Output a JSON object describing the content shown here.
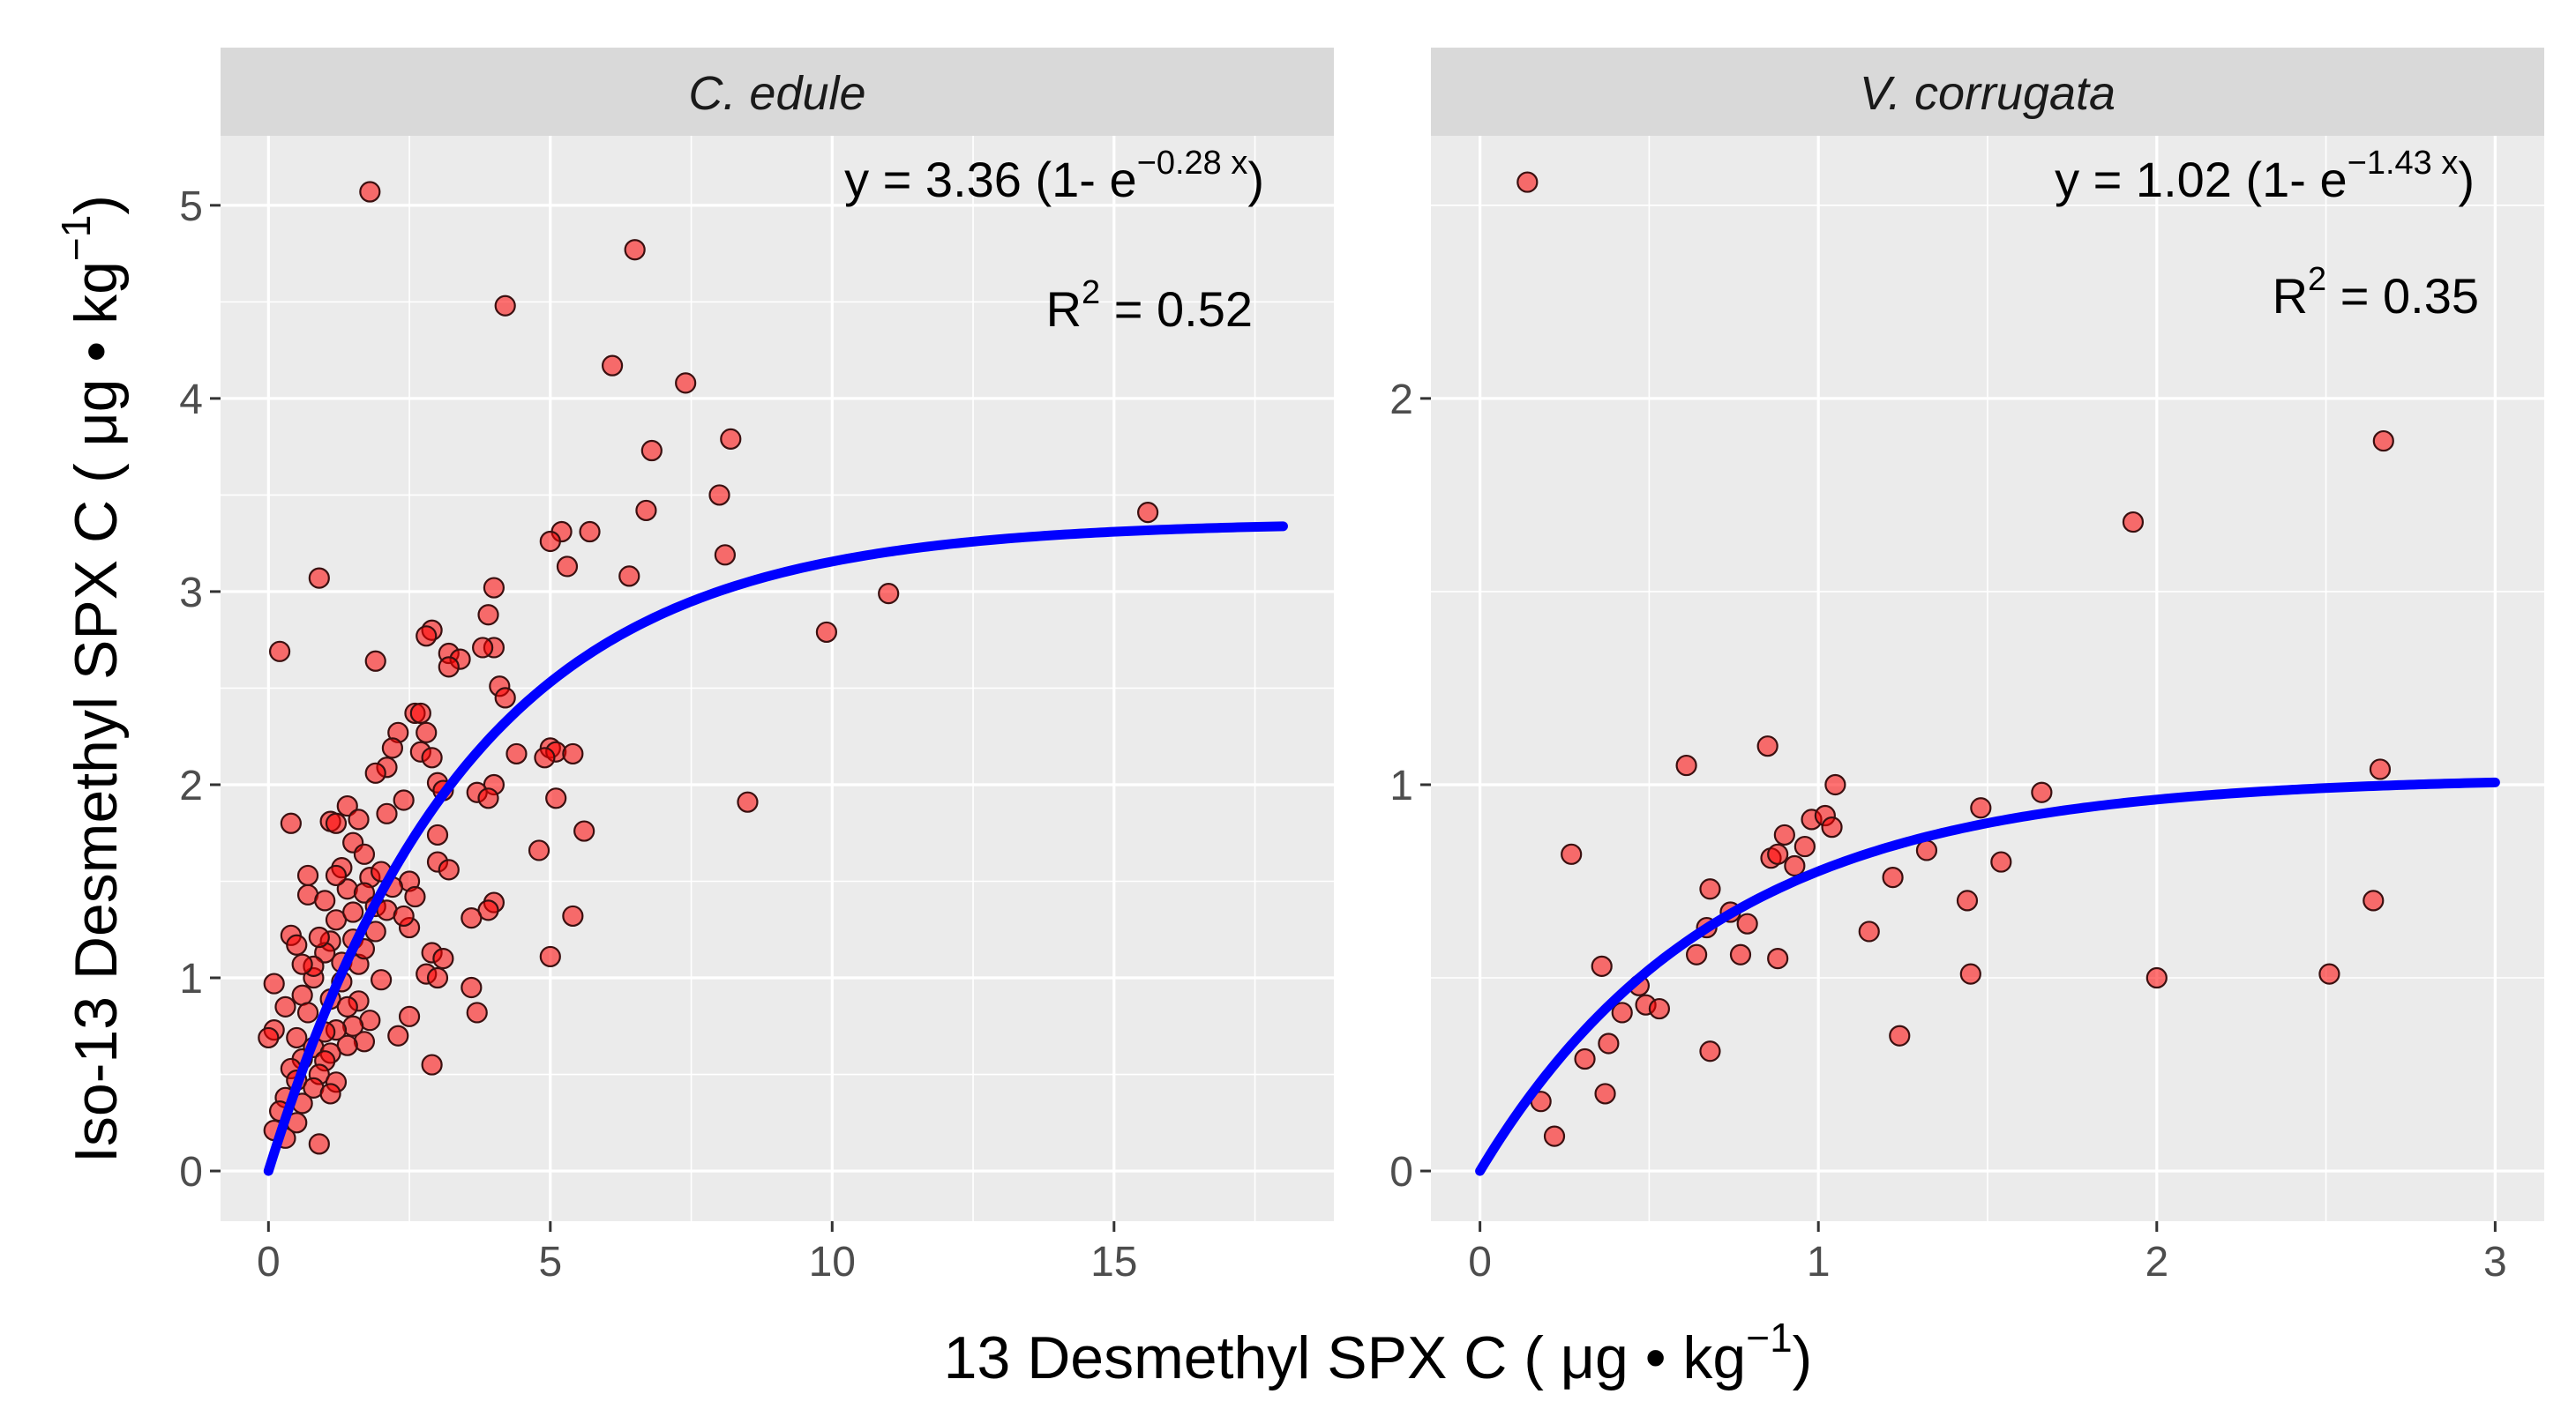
{
  "chart_data": {
    "type": "scatter",
    "y_axis_title": {
      "main": "Iso-13 Desmethyl SPX C ( μg • kg",
      "sup": "−1",
      "end": ")"
    },
    "x_axis_title": {
      "main": "13 Desmethyl SPX C ( μg • kg",
      "sup": "−1",
      "end": ")"
    },
    "colors": {
      "points": "#ff0000",
      "fit_line": "#0000ff",
      "panel": "#ebebeb",
      "strip": "#d9d9d9"
    },
    "panels": [
      {
        "strip_label": "C. edule",
        "equation": {
          "left": "y = 3.36 (1- e",
          "exponent": "−0.28 x",
          "right": ")"
        },
        "r_squared": {
          "label": "R",
          "sup": "2",
          "value_text": " = 0.52"
        },
        "fit": {
          "a": 3.36,
          "b": 0.28,
          "x_min": 0,
          "x_max": 18
        },
        "xlim": [
          -0.85,
          18.9
        ],
        "ylim": [
          -0.26,
          5.36
        ],
        "x_ticks": [
          0,
          5,
          10,
          15
        ],
        "x_tick_labels": [
          "0",
          "5",
          "10",
          "15"
        ],
        "y_ticks": [
          0,
          1,
          2,
          3,
          4,
          5
        ],
        "y_tick_labels": [
          "0",
          "1",
          "2",
          "3",
          "4",
          "5"
        ],
        "points": [
          [
            1.8,
            5.07
          ],
          [
            6.5,
            4.77
          ],
          [
            4.2,
            4.48
          ],
          [
            6.1,
            4.17
          ],
          [
            7.4,
            4.08
          ],
          [
            8.2,
            3.79
          ],
          [
            6.8,
            3.73
          ],
          [
            8.0,
            3.5
          ],
          [
            6.7,
            3.42
          ],
          [
            15.6,
            3.41
          ],
          [
            5.2,
            3.31
          ],
          [
            5.7,
            3.31
          ],
          [
            5.0,
            3.26
          ],
          [
            8.1,
            3.19
          ],
          [
            5.3,
            3.13
          ],
          [
            6.4,
            3.08
          ],
          [
            0.9,
            3.07
          ],
          [
            4.0,
            3.02
          ],
          [
            11.0,
            2.99
          ],
          [
            3.9,
            2.88
          ],
          [
            2.9,
            2.8
          ],
          [
            2.8,
            2.77
          ],
          [
            9.9,
            2.79
          ],
          [
            4.0,
            2.71
          ],
          [
            3.8,
            2.71
          ],
          [
            3.2,
            2.68
          ],
          [
            3.4,
            2.65
          ],
          [
            0.2,
            2.69
          ],
          [
            1.9,
            2.64
          ],
          [
            3.2,
            2.61
          ],
          [
            4.1,
            2.51
          ],
          [
            4.2,
            2.45
          ],
          [
            2.6,
            2.37
          ],
          [
            2.7,
            2.37
          ],
          [
            2.3,
            2.27
          ],
          [
            2.8,
            2.27
          ],
          [
            2.2,
            2.19
          ],
          [
            2.7,
            2.17
          ],
          [
            4.4,
            2.16
          ],
          [
            5.0,
            2.19
          ],
          [
            5.1,
            2.17
          ],
          [
            5.4,
            2.16
          ],
          [
            2.9,
            2.14
          ],
          [
            2.1,
            2.09
          ],
          [
            4.9,
            2.14
          ],
          [
            4.0,
            2.0
          ],
          [
            3.0,
            2.01
          ],
          [
            1.9,
            2.06
          ],
          [
            3.1,
            1.97
          ],
          [
            3.7,
            1.96
          ],
          [
            3.9,
            1.93
          ],
          [
            5.1,
            1.93
          ],
          [
            8.5,
            1.91
          ],
          [
            2.4,
            1.92
          ],
          [
            1.4,
            1.89
          ],
          [
            2.1,
            1.85
          ],
          [
            1.6,
            1.82
          ],
          [
            1.1,
            1.81
          ],
          [
            1.2,
            1.8
          ],
          [
            0.4,
            1.8
          ],
          [
            5.6,
            1.76
          ],
          [
            3.0,
            1.74
          ],
          [
            1.5,
            1.7
          ],
          [
            4.8,
            1.66
          ],
          [
            1.7,
            1.64
          ],
          [
            3.0,
            1.6
          ],
          [
            1.3,
            1.57
          ],
          [
            3.2,
            1.56
          ],
          [
            0.7,
            1.53
          ],
          [
            1.8,
            1.52
          ],
          [
            2.5,
            1.5
          ],
          [
            2.2,
            1.47
          ],
          [
            1.4,
            1.46
          ],
          [
            1.7,
            1.44
          ],
          [
            0.7,
            1.43
          ],
          [
            2.6,
            1.42
          ],
          [
            4.0,
            1.39
          ],
          [
            1.9,
            1.37
          ],
          [
            2.1,
            1.35
          ],
          [
            3.9,
            1.35
          ],
          [
            3.6,
            1.31
          ],
          [
            5.4,
            1.32
          ],
          [
            1.2,
            1.3
          ],
          [
            2.5,
            1.26
          ],
          [
            0.4,
            1.22
          ],
          [
            1.1,
            1.19
          ],
          [
            0.5,
            1.17
          ],
          [
            2.9,
            1.13
          ],
          [
            3.1,
            1.1
          ],
          [
            5.0,
            1.11
          ],
          [
            1.3,
            1.08
          ],
          [
            2.8,
            1.02
          ],
          [
            3.0,
            1.0
          ],
          [
            0.8,
            1.0
          ],
          [
            2.0,
            0.99
          ],
          [
            0.1,
            0.97
          ],
          [
            3.6,
            0.95
          ],
          [
            0.6,
            0.91
          ],
          [
            1.6,
            0.88
          ],
          [
            3.7,
            0.82
          ],
          [
            2.5,
            0.8
          ],
          [
            0.3,
            0.85
          ],
          [
            1.8,
            0.78
          ],
          [
            1.5,
            0.75
          ],
          [
            0.1,
            0.73
          ],
          [
            1.2,
            0.73
          ],
          [
            2.3,
            0.7
          ],
          [
            0.5,
            0.69
          ],
          [
            0.0,
            0.69
          ],
          [
            1.7,
            0.67
          ],
          [
            1.4,
            0.65
          ],
          [
            0.8,
            0.64
          ],
          [
            1.1,
            0.61
          ],
          [
            0.6,
            0.58
          ],
          [
            1.0,
            0.57
          ],
          [
            2.9,
            0.55
          ],
          [
            0.4,
            0.53
          ],
          [
            0.9,
            0.5
          ],
          [
            0.5,
            0.47
          ],
          [
            1.2,
            0.46
          ],
          [
            0.8,
            0.43
          ],
          [
            1.1,
            0.4
          ],
          [
            0.3,
            0.38
          ],
          [
            0.6,
            0.35
          ],
          [
            0.2,
            0.31
          ],
          [
            0.5,
            0.25
          ],
          [
            0.1,
            0.21
          ],
          [
            0.3,
            0.17
          ],
          [
            0.9,
            0.14
          ],
          [
            1.0,
            1.4
          ],
          [
            1.0,
            1.13
          ],
          [
            1.3,
            0.98
          ],
          [
            0.9,
            1.21
          ],
          [
            1.5,
            1.34
          ],
          [
            1.6,
            1.07
          ],
          [
            0.7,
            0.82
          ],
          [
            1.1,
            0.89
          ],
          [
            1.9,
            1.24
          ],
          [
            2.0,
            1.55
          ],
          [
            1.5,
            1.2
          ],
          [
            1.0,
            0.72
          ],
          [
            0.8,
            1.06
          ],
          [
            1.2,
            1.53
          ],
          [
            1.4,
            0.85
          ],
          [
            1.7,
            1.15
          ],
          [
            2.4,
            1.32
          ],
          [
            0.6,
            1.07
          ]
        ]
      },
      {
        "strip_label": "V. corrugata",
        "equation": {
          "left": "y = 1.02 (1- e",
          "exponent": "−1.43 x",
          "right": ")"
        },
        "r_squared": {
          "label": "R",
          "sup": "2",
          "value_text": " = 0.35"
        },
        "fit": {
          "a": 1.02,
          "b": 1.43,
          "x_min": 0,
          "x_max": 3
        },
        "xlim": [
          -0.145,
          3.145
        ],
        "ylim": [
          -0.13,
          2.68
        ],
        "x_ticks": [
          0,
          1,
          2,
          3
        ],
        "x_tick_labels": [
          "0",
          "1",
          "2",
          "3"
        ],
        "y_ticks": [
          0,
          1,
          2
        ],
        "y_tick_labels": [
          "0",
          "1",
          "2"
        ],
        "points": [
          [
            0.14,
            2.56
          ],
          [
            2.67,
            1.89
          ],
          [
            1.93,
            1.68
          ],
          [
            0.85,
            1.1
          ],
          [
            0.61,
            1.05
          ],
          [
            2.66,
            1.04
          ],
          [
            1.05,
            1.0
          ],
          [
            1.66,
            0.98
          ],
          [
            1.48,
            0.94
          ],
          [
            0.98,
            0.91
          ],
          [
            1.02,
            0.92
          ],
          [
            1.04,
            0.89
          ],
          [
            0.9,
            0.87
          ],
          [
            0.96,
            0.84
          ],
          [
            1.32,
            0.83
          ],
          [
            0.86,
            0.81
          ],
          [
            0.88,
            0.82
          ],
          [
            0.93,
            0.79
          ],
          [
            0.27,
            0.82
          ],
          [
            1.54,
            0.8
          ],
          [
            1.22,
            0.76
          ],
          [
            0.68,
            0.73
          ],
          [
            2.64,
            0.7
          ],
          [
            1.44,
            0.7
          ],
          [
            0.74,
            0.67
          ],
          [
            0.79,
            0.64
          ],
          [
            0.67,
            0.63
          ],
          [
            1.15,
            0.62
          ],
          [
            0.64,
            0.56
          ],
          [
            0.77,
            0.56
          ],
          [
            0.88,
            0.55
          ],
          [
            0.36,
            0.53
          ],
          [
            0.47,
            0.48
          ],
          [
            1.45,
            0.51
          ],
          [
            2.0,
            0.5
          ],
          [
            2.51,
            0.51
          ],
          [
            0.49,
            0.43
          ],
          [
            0.53,
            0.42
          ],
          [
            0.42,
            0.41
          ],
          [
            1.24,
            0.35
          ],
          [
            0.38,
            0.33
          ],
          [
            0.31,
            0.29
          ],
          [
            0.68,
            0.31
          ],
          [
            0.37,
            0.2
          ],
          [
            0.18,
            0.18
          ],
          [
            0.22,
            0.09
          ]
        ]
      }
    ]
  }
}
